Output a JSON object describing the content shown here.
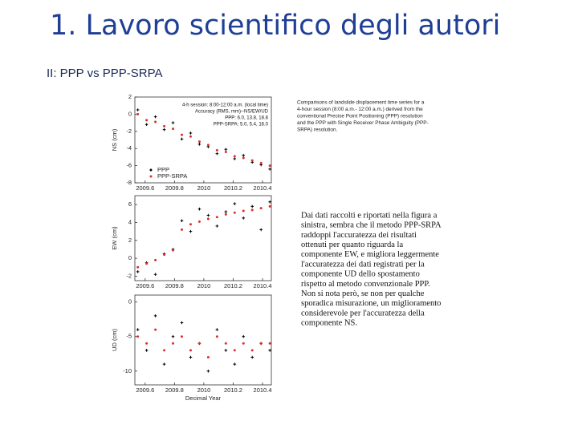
{
  "title": "1. Lavoro scientifico degli autori",
  "subtitle": "II:  PPP vs PPP-SRPA",
  "caption": [
    "Comparisons of landslide displacement time series for a",
    "4-hour session (8:00 a.m.- 12:00 a.m.) derived from the",
    "conventional Precise Point Positioning (PPP) resolution",
    "and the PPP with Single Receiver Phase Ambiguity (PPP-",
    "SRPA) resolution."
  ],
  "comment": [
    "Dai dati raccolti e riportati nella figura a",
    "sinistra, sembra che il metodo PPP-SRPA",
    "raddoppi l'accuratezza dei risultati",
    "ottenuti per quanto riguarda la",
    "componente EW, e migliora leggermente",
    "l'accuratezza dei dati registrati per la",
    "componente UD dello spostamento",
    "rispetto al metodo convenzionale PPP.",
    "Non si nota però, se non per qualche",
    "sporadica misurazione, un miglioramento",
    "considerevole per l'accuratezza della",
    "componente NS."
  ],
  "chart_data": [
    {
      "type": "scatter",
      "ylabel": "NS (cm)",
      "annotation": [
        "4-h session: 8:00-12:00 a.m. (local time)",
        "Accuracy (RMS, mm)--NS/EW/UD",
        "PPP: 6.0, 13.8, 18.8",
        "PPP-SRPA: 5.0, 5.4, 16.0"
      ],
      "legend": "lower left",
      "x": [
        2009.55,
        2009.61,
        2009.67,
        2009.73,
        2009.79,
        2009.85,
        2009.91,
        2009.97,
        2010.03,
        2010.09,
        2010.15,
        2010.21,
        2010.27,
        2010.33,
        2010.39,
        2010.45
      ],
      "series": [
        {
          "name": "PPP",
          "color": "#000000",
          "values": [
            0.5,
            -1.2,
            -0.3,
            -1.8,
            -1.0,
            -2.9,
            -2.2,
            -3.5,
            -3.8,
            -4.6,
            -4.1,
            -5.2,
            -4.8,
            -5.6,
            -5.9,
            -6.4
          ]
        },
        {
          "name": "PPP-SRPA",
          "color": "#d9302c",
          "values": [
            0,
            -0.7,
            -0.9,
            -1.4,
            -1.7,
            -2.4,
            -2.6,
            -3.2,
            -3.6,
            -4.2,
            -4.4,
            -4.9,
            -5.1,
            -5.4,
            -5.7,
            -6.0
          ]
        }
      ],
      "xlim": [
        2009.53,
        2010.46
      ],
      "xticks": [
        2009.6,
        2009.8,
        2010,
        2010.2,
        2010.4
      ],
      "ylim": [
        -8,
        2
      ],
      "yticks": [
        2,
        0,
        -2,
        -4,
        -6,
        -8
      ]
    },
    {
      "type": "scatter",
      "ylabel": "EW (cm)",
      "x": [
        2009.55,
        2009.61,
        2009.67,
        2009.73,
        2009.79,
        2009.85,
        2009.91,
        2009.97,
        2010.03,
        2010.09,
        2010.15,
        2010.21,
        2010.27,
        2010.33,
        2010.39,
        2010.45
      ],
      "series": [
        {
          "color": "#000000",
          "values": [
            -1.5,
            -0.5,
            -1.8,
            0.5,
            1.0,
            4.2,
            3.0,
            5.5,
            4.8,
            3.6,
            5.2,
            6.1,
            4.5,
            5.8,
            3.2,
            6.3
          ]
        },
        {
          "color": "#d9302c",
          "values": [
            -1.0,
            -0.6,
            -0.2,
            0.4,
            0.9,
            3.2,
            3.8,
            4.1,
            4.4,
            4.6,
            4.9,
            5.1,
            5.3,
            5.4,
            5.6,
            5.8
          ]
        }
      ],
      "xlim": [
        2009.53,
        2010.46
      ],
      "xticks": [
        2009.6,
        2009.8,
        2010,
        2010.2,
        2010.4
      ],
      "ylim": [
        -2.5,
        7
      ],
      "yticks": [
        6,
        4,
        2,
        0,
        -2
      ]
    },
    {
      "type": "scatter",
      "ylabel": "UD (cm)",
      "xlabel": "Decimal Year",
      "x": [
        2009.55,
        2009.61,
        2009.67,
        2009.73,
        2009.79,
        2009.85,
        2009.91,
        2009.97,
        2010.03,
        2010.09,
        2010.15,
        2010.21,
        2010.27,
        2010.33,
        2010.39,
        2010.45
      ],
      "series": [
        {
          "color": "#000000",
          "values": [
            -4,
            -7,
            -2,
            -9,
            -5,
            -3,
            -8,
            -6,
            -10,
            -4,
            -7,
            -9,
            -5,
            -8,
            -6,
            -7
          ]
        },
        {
          "color": "#d9302c",
          "values": [
            -5,
            -6,
            -4,
            -7,
            -6,
            -5,
            -7,
            -6,
            -8,
            -5,
            -6,
            -7,
            -6,
            -7,
            -6,
            -6
          ]
        }
      ],
      "xlim": [
        2009.53,
        2010.46
      ],
      "xticks": [
        2009.6,
        2009.8,
        2010,
        2010.2,
        2010.4
      ],
      "ylim": [
        -12,
        1
      ],
      "yticks": [
        0,
        -5,
        -10
      ]
    }
  ]
}
